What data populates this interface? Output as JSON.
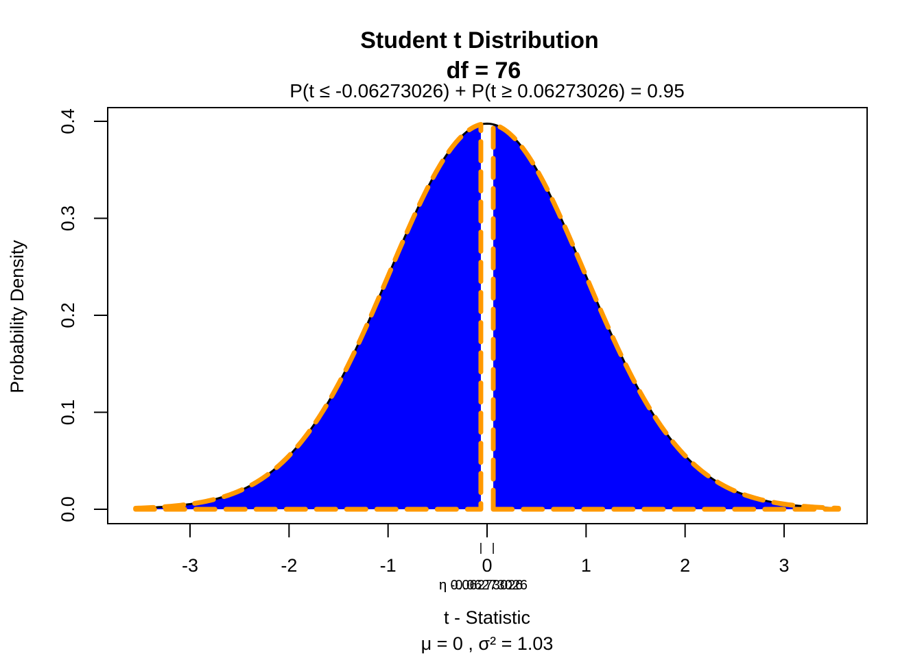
{
  "chart_data": {
    "type": "area",
    "title": "Student t Distribution",
    "title_line2": "df  =  76",
    "subtitle": "P(t ≤ -0.06273026) + P(t ≥ 0.06273026) = 0.95",
    "subtitle_parts": {
      "left_open": "P(",
      "left_expr": "t ≤ -0.06273026",
      "left_close": ")",
      "plus": "+",
      "right_open": "P(",
      "right_expr": "t ≥ 0.06273026",
      "right_close": ")",
      "equals": "=",
      "result": "0.95"
    },
    "xlabel": "t - Statistic",
    "xlabel_line2": "μ =  0 , σ² =  1.03",
    "ylabel": "Probability Density",
    "xlim": [
      -3.6,
      3.6
    ],
    "ylim": [
      0,
      0.4
    ],
    "x_ticks": [
      -3,
      -2,
      -1,
      0,
      1,
      2,
      3
    ],
    "x_tick_labels": [
      "-3",
      "-2",
      "-1",
      "0",
      "1",
      "2",
      "3"
    ],
    "y_ticks": [
      0.0,
      0.1,
      0.2,
      0.3,
      0.4
    ],
    "y_tick_labels": [
      "0.0",
      "0.1",
      "0.2",
      "0.3",
      "0.4"
    ],
    "df": 76,
    "critical_values": [
      -0.06273026,
      0.06273026
    ],
    "critical_labels": [
      "-0.06273026",
      "0.06273026"
    ],
    "critical_label_prefix": "η",
    "shaded_probability": 0.95,
    "shaded_regions": [
      {
        "from": -3.55,
        "to": -0.06273026,
        "color": "#0000ff"
      },
      {
        "from": 0.06273026,
        "to": 3.55,
        "color": "#0000ff"
      }
    ],
    "series": [
      {
        "name": "t density (df=76)",
        "color": "#000000",
        "style": "solid",
        "x": [
          -3.5,
          -3.0,
          -2.5,
          -2.0,
          -1.5,
          -1.0,
          -0.5,
          0.0,
          0.5,
          1.0,
          1.5,
          2.0,
          2.5,
          3.0,
          3.5
        ],
        "values": [
          0.001,
          0.0048,
          0.018,
          0.0547,
          0.1292,
          0.2405,
          0.3509,
          0.3976,
          0.3509,
          0.2405,
          0.1292,
          0.0547,
          0.018,
          0.0048,
          0.001
        ]
      },
      {
        "name": "shaded region outline",
        "color": "#ff9900",
        "style": "dashed"
      }
    ],
    "grid": false,
    "legend": "none",
    "colors": {
      "fill": "#0000ff",
      "outline": "#ff9900",
      "curve": "#000000",
      "gap": "#ffffff"
    }
  }
}
